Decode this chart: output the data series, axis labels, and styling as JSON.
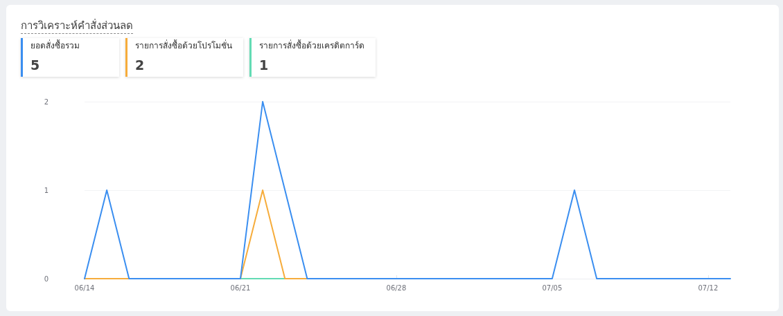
{
  "chart_data": {
    "type": "line",
    "title": "การวิเคราะห์คำสั่งส่วนลด",
    "categories": [
      "06/14",
      null,
      null,
      null,
      null,
      null,
      null,
      "06/21",
      null,
      null,
      null,
      null,
      null,
      null,
      "06/28",
      null,
      null,
      null,
      null,
      null,
      null,
      "07/05",
      null,
      null,
      null,
      null,
      null,
      null,
      "07/12",
      null
    ],
    "series": [
      {
        "name": "ยอดสั่งซื้อรวม",
        "color": "#3a8ef0",
        "values": [
          0,
          1,
          0,
          0,
          0,
          0,
          0,
          0,
          2,
          1,
          0,
          0,
          0,
          0,
          0,
          0,
          0,
          0,
          0,
          0,
          0,
          0,
          1,
          0,
          0,
          0,
          0,
          0,
          0,
          0
        ]
      },
      {
        "name": "รายการสั่งซื้อด้วยโปรโมชั่น",
        "color": "#f6ac3b",
        "values": [
          0,
          0,
          0,
          null,
          null,
          null,
          null,
          0,
          1,
          0,
          0,
          null,
          null,
          null,
          null,
          null,
          null,
          null,
          null,
          null,
          null,
          null,
          null,
          null,
          null,
          null,
          null,
          null,
          null,
          null
        ]
      },
      {
        "name": "รายการสั่งซื้อด้วยเครดิตการ์ด",
        "color": "#63dbb4",
        "values": [
          null,
          null,
          null,
          null,
          null,
          null,
          null,
          0,
          0,
          0,
          null,
          null,
          null,
          null,
          null,
          null,
          null,
          null,
          null,
          null,
          null,
          null,
          null,
          null,
          null,
          null,
          null,
          null,
          null,
          null
        ]
      }
    ],
    "annotations": [
      "5",
      "2",
      "1"
    ],
    "ylim": [
      0,
      2
    ],
    "yticks": [
      0,
      1,
      2
    ],
    "grid": "y",
    "legend": "top left",
    "marker": "none",
    "line_style": "solid"
  }
}
